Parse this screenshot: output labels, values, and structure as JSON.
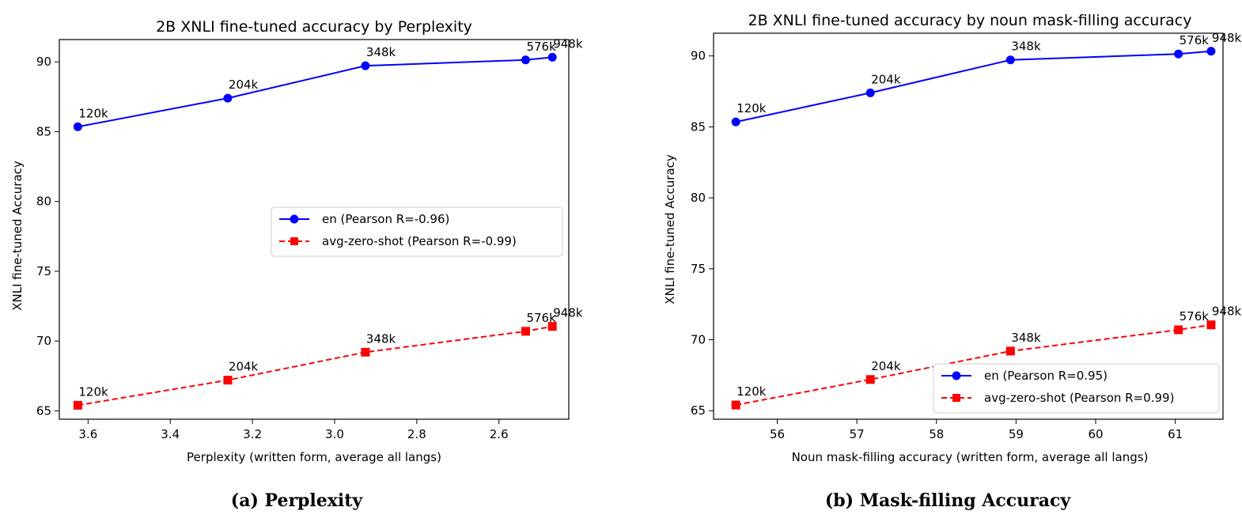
{
  "chart_data": [
    {
      "type": "line",
      "title": "2B XNLI fine-tuned accuracy by Perplexity",
      "xlabel": "Perplexity (written form, average all langs)",
      "ylabel": "XNLI fine-tuned Accuracy",
      "x_inverted": true,
      "xlim": [
        3.67,
        2.43
      ],
      "ylim": [
        64.4,
        91.6
      ],
      "xticks": [
        3.6,
        3.4,
        3.2,
        3.0,
        2.8,
        2.6
      ],
      "xtick_labels": [
        "3.6",
        "3.4",
        "3.2",
        "3.0",
        "2.8",
        "2.6"
      ],
      "yticks": [
        65,
        70,
        75,
        80,
        85,
        90
      ],
      "ytick_labels": [
        "65",
        "70",
        "75",
        "80",
        "85",
        "90"
      ],
      "point_labels": [
        "120k",
        "204k",
        "348k",
        "576k",
        "948k"
      ],
      "x": [
        3.625,
        3.26,
        2.925,
        2.535,
        2.47
      ],
      "series": [
        {
          "name": "en (Pearson R=-0.96)",
          "values": [
            85.35,
            87.4,
            89.72,
            90.14,
            90.33
          ],
          "color": "#0000ff",
          "marker": "circle",
          "dash": "solid"
        },
        {
          "name": "avg-zero-shot (Pearson R=-0.99)",
          "values": [
            65.4,
            67.2,
            69.2,
            70.7,
            71.05
          ],
          "color": "#ff0000",
          "marker": "square",
          "dash": "dashed"
        }
      ],
      "legend": "center-right",
      "caption": "(a) Perplexity"
    },
    {
      "type": "line",
      "title": "2B XNLI fine-tuned accuracy by noun mask-filling accuracy",
      "xlabel": "Noun mask-filling accuracy (written form, average all langs)",
      "ylabel": "XNLI fine-tuned Accuracy",
      "x_inverted": false,
      "xlim": [
        55.2,
        61.6
      ],
      "ylim": [
        64.4,
        91.6
      ],
      "xticks": [
        56,
        57,
        58,
        59,
        60,
        61
      ],
      "xtick_labels": [
        "56",
        "57",
        "58",
        "59",
        "60",
        "61"
      ],
      "yticks": [
        65,
        70,
        75,
        80,
        85,
        90
      ],
      "ytick_labels": [
        "65",
        "70",
        "75",
        "80",
        "85",
        "90"
      ],
      "point_labels": [
        "120k",
        "204k",
        "348k",
        "576k",
        "948k"
      ],
      "x": [
        55.48,
        57.17,
        58.93,
        61.04,
        61.45
      ],
      "series": [
        {
          "name": "en (Pearson R=0.95)",
          "values": [
            85.35,
            87.4,
            89.72,
            90.14,
            90.33
          ],
          "color": "#0000ff",
          "marker": "circle",
          "dash": "solid"
        },
        {
          "name": "avg-zero-shot (Pearson R=0.99)",
          "values": [
            65.4,
            67.2,
            69.2,
            70.7,
            71.05
          ],
          "color": "#ff0000",
          "marker": "square",
          "dash": "dashed"
        }
      ],
      "legend": "lower-right",
      "caption": "(b) Mask-filling Accuracy"
    }
  ]
}
